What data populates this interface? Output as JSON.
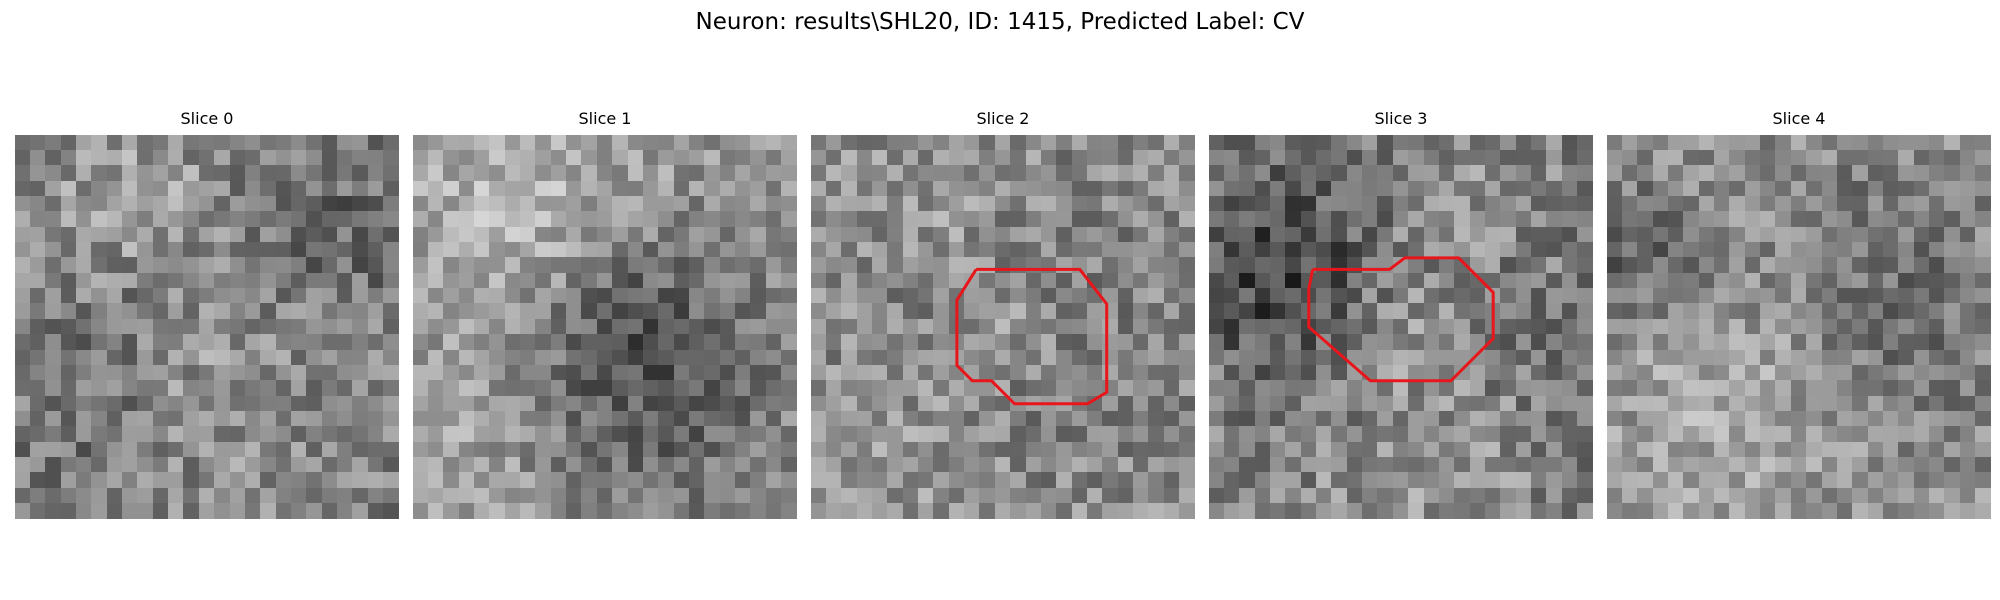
{
  "figure": {
    "title": "Neuron: results\\SHL20, ID: 1415, Predicted Label: CV"
  },
  "panels": [
    {
      "title": "Slice 0",
      "seed": 11,
      "tone": [
        128,
        92
      ],
      "blobs": [
        [
          0.3,
          0.18,
          0.16,
          34
        ],
        [
          0.5,
          0.62,
          0.2,
          28
        ],
        [
          0.8,
          0.28,
          0.14,
          -30
        ],
        [
          0.35,
          0.45,
          0.12,
          -26
        ],
        [
          0.2,
          0.75,
          0.15,
          -22
        ]
      ],
      "roi": null
    },
    {
      "title": "Slice 1",
      "seed": 23,
      "tone": [
        150,
        80
      ],
      "blobs": [
        [
          0.3,
          0.25,
          0.22,
          38
        ],
        [
          0.62,
          0.65,
          0.26,
          -55
        ],
        [
          0.55,
          0.45,
          0.16,
          -30
        ],
        [
          0.15,
          0.8,
          0.18,
          18
        ]
      ],
      "roi": null
    },
    {
      "title": "Slice 2",
      "seed": 37,
      "tone": [
        140,
        88
      ],
      "blobs": [
        [
          0.52,
          0.5,
          0.1,
          30
        ],
        [
          0.52,
          0.52,
          0.25,
          -24
        ],
        [
          0.3,
          0.8,
          0.18,
          20
        ],
        [
          0.35,
          0.2,
          0.15,
          18
        ]
      ],
      "roi": [
        [
          0.43,
          0.35
        ],
        [
          0.7,
          0.35
        ],
        [
          0.77,
          0.44
        ],
        [
          0.77,
          0.67
        ],
        [
          0.72,
          0.7
        ],
        [
          0.53,
          0.7
        ],
        [
          0.47,
          0.64
        ],
        [
          0.42,
          0.64
        ],
        [
          0.38,
          0.6
        ],
        [
          0.38,
          0.43
        ],
        [
          0.43,
          0.35
        ]
      ]
    },
    {
      "title": "Slice 3",
      "seed": 53,
      "tone": [
        128,
        96
      ],
      "blobs": [
        [
          0.18,
          0.35,
          0.18,
          -62
        ],
        [
          0.5,
          0.5,
          0.12,
          32
        ],
        [
          0.52,
          0.58,
          0.25,
          -18
        ],
        [
          0.55,
          0.85,
          0.2,
          34
        ],
        [
          0.6,
          0.18,
          0.14,
          22
        ]
      ],
      "roi": [
        [
          0.27,
          0.35
        ],
        [
          0.47,
          0.35
        ],
        [
          0.51,
          0.32
        ],
        [
          0.65,
          0.32
        ],
        [
          0.74,
          0.41
        ],
        [
          0.74,
          0.53
        ],
        [
          0.63,
          0.64
        ],
        [
          0.42,
          0.64
        ],
        [
          0.26,
          0.5
        ],
        [
          0.26,
          0.4
        ],
        [
          0.27,
          0.35
        ]
      ]
    },
    {
      "title": "Slice 4",
      "seed": 71,
      "tone": [
        145,
        82
      ],
      "blobs": [
        [
          0.08,
          0.3,
          0.12,
          -48
        ],
        [
          0.35,
          0.75,
          0.22,
          24
        ],
        [
          0.8,
          0.55,
          0.2,
          -28
        ],
        [
          0.7,
          0.25,
          0.18,
          -20
        ]
      ],
      "roi": null
    }
  ]
}
